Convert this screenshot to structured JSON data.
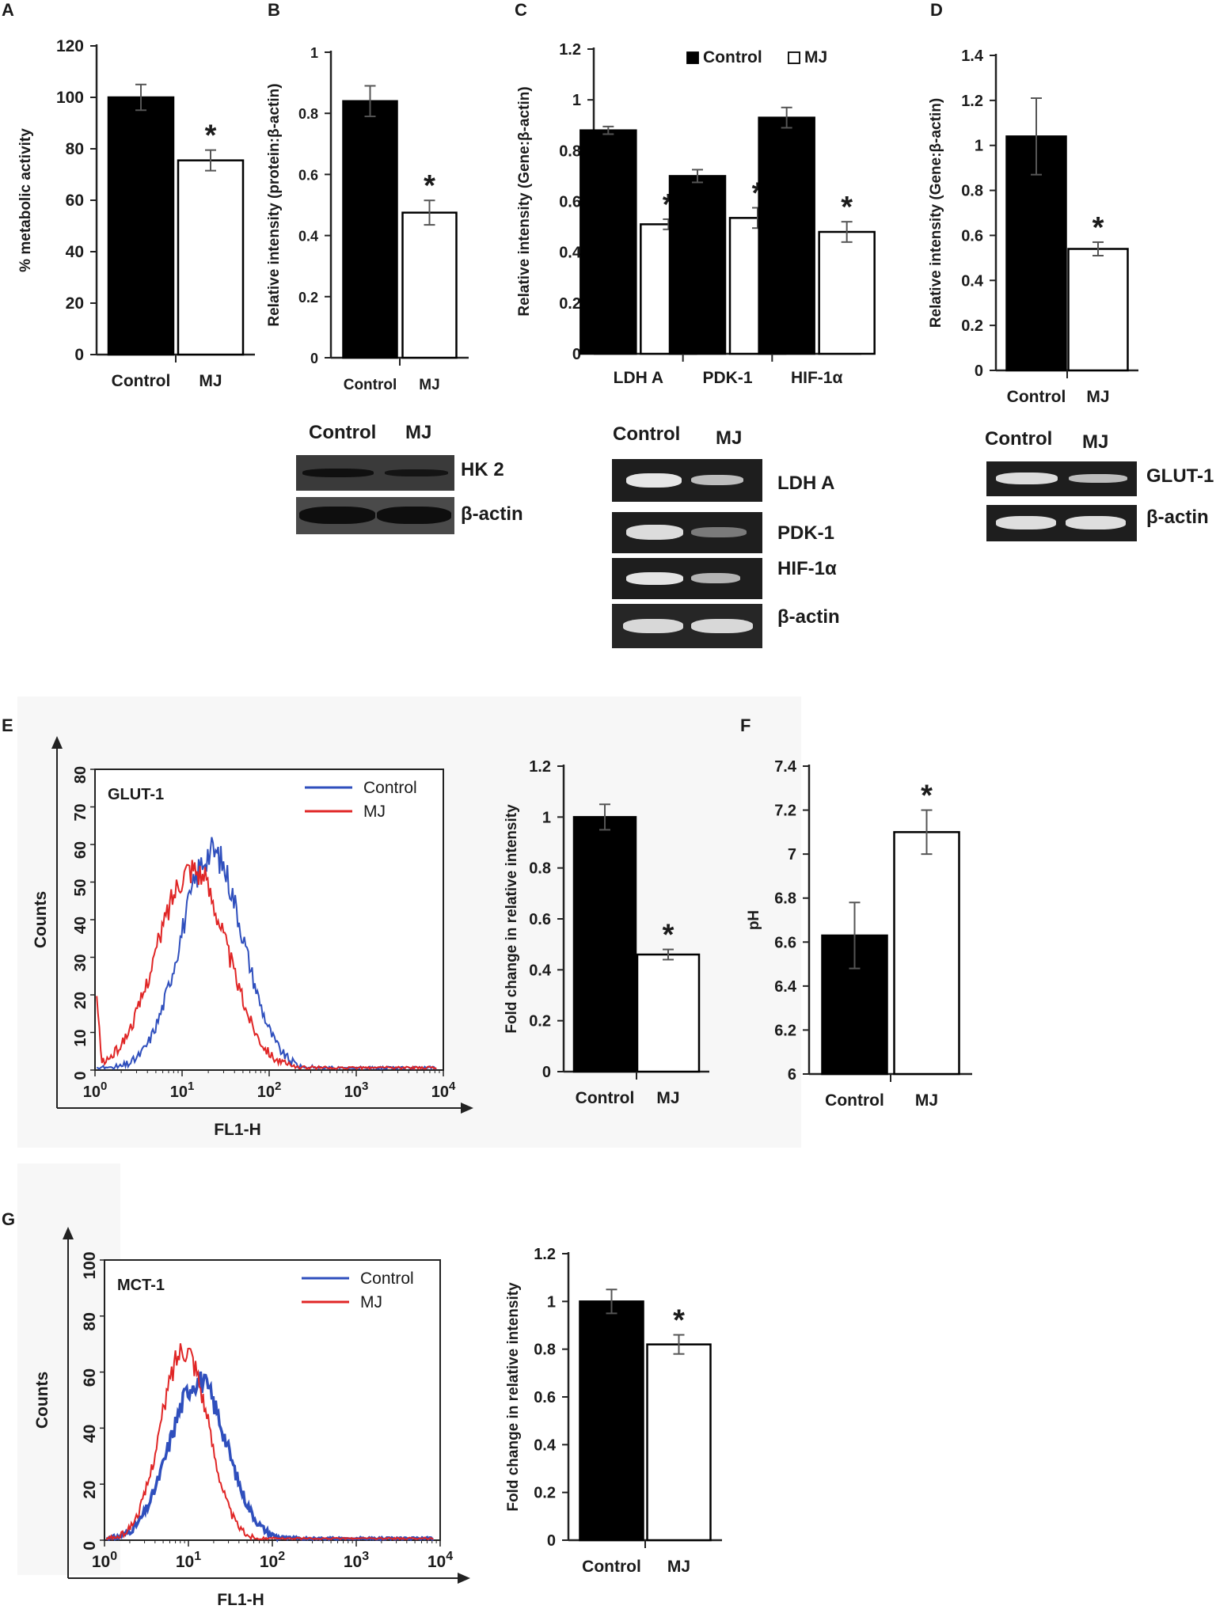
{
  "panels": {
    "a": "A",
    "b": "B",
    "c": "C",
    "d": "D",
    "e": "E",
    "f": "F",
    "g": "G"
  },
  "colors": {
    "control_fill": "#000000",
    "mj_fill": "#ffffff",
    "flow_control": "#2f4fbd",
    "flow_mj": "#e02626",
    "blot_background": "#1e1e1e",
    "axis": "#222222"
  },
  "chart_data": [
    {
      "id": "A",
      "type": "bar",
      "categories": [
        "Control",
        "MJ"
      ],
      "values": [
        100,
        75.5
      ],
      "errors": [
        5,
        4
      ],
      "significance": [
        "",
        "*"
      ],
      "ylabel": "% metabolic activity",
      "ylim": [
        0,
        120
      ],
      "yticks": [
        "0",
        "20",
        "40",
        "60",
        "80",
        "100",
        "120"
      ]
    },
    {
      "id": "B",
      "type": "bar",
      "categories": [
        "Control",
        "MJ"
      ],
      "values": [
        0.84,
        0.475
      ],
      "errors": [
        0.05,
        0.04
      ],
      "significance": [
        "",
        "*"
      ],
      "ylabel": "Relative intensity (protein:β-actin)",
      "ylim": [
        0,
        1
      ],
      "yticks": [
        "0",
        "0.2",
        "0.4",
        "0.6",
        "0.8",
        "1"
      ]
    },
    {
      "id": "C",
      "type": "bar",
      "categories": [
        "LDH A",
        "PDK-1",
        "HIF-1α"
      ],
      "series": [
        {
          "name": "Control",
          "values": [
            0.88,
            0.7,
            0.93
          ],
          "errors": [
            0.015,
            0.025,
            0.04
          ],
          "significance": [
            "",
            "",
            ""
          ]
        },
        {
          "name": "MJ",
          "values": [
            0.51,
            0.535,
            0.48
          ],
          "errors": [
            0.02,
            0.04,
            0.04
          ],
          "significance": [
            "*",
            "*",
            "*"
          ]
        }
      ],
      "ylabel": "Relative intensity (Gene:β-actin)",
      "ylim": [
        0,
        1.2
      ],
      "yticks": [
        "0",
        "0.2",
        "0.4",
        "0.6",
        "0.8",
        "1",
        "1.2"
      ],
      "legend": "top"
    },
    {
      "id": "D",
      "type": "bar",
      "categories": [
        "Control",
        "MJ"
      ],
      "values": [
        1.04,
        0.54
      ],
      "errors": [
        0.17,
        0.03
      ],
      "significance": [
        "",
        "*"
      ],
      "ylabel": "Relative intensity (Gene:β-actin)",
      "ylim": [
        0,
        1.4
      ],
      "yticks": [
        "0",
        "0.2",
        "0.4",
        "0.6",
        "0.8",
        "1",
        "1.2",
        "1.4"
      ]
    },
    {
      "id": "E1",
      "type": "line",
      "annotation": "GLUT-1",
      "xlabel": "FL1-H",
      "ylabel": "Counts",
      "xscale": "log",
      "xlim": [
        1,
        10000
      ],
      "ylim": [
        0,
        80
      ],
      "yticks": [
        "0",
        "10",
        "20",
        "30",
        "40",
        "50",
        "60",
        "70",
        "80"
      ],
      "series": [
        {
          "name": "Control",
          "peak_x": 22,
          "peak_y": 58,
          "width": 0.36
        },
        {
          "name": "MJ",
          "peak_x": 13,
          "peak_y": 54,
          "width": 0.4
        }
      ],
      "legend": "top-right"
    },
    {
      "id": "E2",
      "type": "bar",
      "categories": [
        "Control",
        "MJ"
      ],
      "values": [
        1.0,
        0.46
      ],
      "errors": [
        0.05,
        0.02
      ],
      "significance": [
        "",
        "*"
      ],
      "ylabel": "Fold change in relative intensity",
      "ylim": [
        0,
        1.2
      ],
      "yticks": [
        "0",
        "0.2",
        "0.4",
        "0.6",
        "0.8",
        "1",
        "1.2"
      ]
    },
    {
      "id": "F",
      "type": "bar",
      "categories": [
        "Control",
        "MJ"
      ],
      "values": [
        6.63,
        7.1
      ],
      "errors": [
        0.15,
        0.1
      ],
      "significance": [
        "",
        "*"
      ],
      "ylabel": "pH",
      "ylim": [
        6,
        7.4
      ],
      "yticks": [
        "6",
        "6.2",
        "6.4",
        "6.6",
        "6.8",
        "7",
        "7.2",
        "7.4"
      ]
    },
    {
      "id": "G1",
      "type": "line",
      "annotation": "MCT-1",
      "xlabel": "FL1-H",
      "ylabel": "Counts",
      "xscale": "log",
      "xlim": [
        1,
        10000
      ],
      "ylim": [
        0,
        100
      ],
      "yticks": [
        "0",
        "20",
        "40",
        "60",
        "80",
        "100"
      ],
      "series": [
        {
          "name": "Control",
          "peak_x": 13,
          "peak_y": 57,
          "width": 0.34
        },
        {
          "name": "MJ",
          "peak_x": 9,
          "peak_y": 69,
          "width": 0.28
        }
      ],
      "legend": "top-right"
    },
    {
      "id": "G2",
      "type": "bar",
      "categories": [
        "Control",
        "MJ"
      ],
      "values": [
        1.0,
        0.82
      ],
      "errors": [
        0.05,
        0.04
      ],
      "significance": [
        "",
        "*"
      ],
      "ylabel": "Fold change in relative intensity",
      "ylim": [
        0,
        1.2
      ],
      "yticks": [
        "0",
        "0.2",
        "0.4",
        "0.6",
        "0.8",
        "1",
        "1.2"
      ]
    }
  ],
  "flow_xticks": [
    {
      "base": "10",
      "exp": "0"
    },
    {
      "base": "10",
      "exp": "1"
    },
    {
      "base": "10",
      "exp": "2"
    },
    {
      "base": "10",
      "exp": "3"
    },
    {
      "base": "10",
      "exp": "4"
    }
  ],
  "blots": {
    "b": {
      "header_control": "Control",
      "header_mj": "MJ",
      "rows": [
        "HK 2",
        "β-actin"
      ]
    },
    "c": {
      "header_control": "Control",
      "header_mj": "MJ",
      "rows": [
        "LDH A",
        "PDK-1",
        "HIF-1α",
        "β-actin"
      ]
    },
    "d": {
      "header_control": "Control",
      "header_mj": "MJ",
      "rows": [
        "GLUT-1",
        "β-actin"
      ]
    }
  }
}
